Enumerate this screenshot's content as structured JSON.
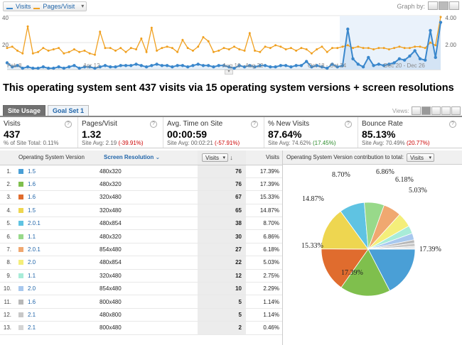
{
  "graph": {
    "metric1": "Visits",
    "metric2": "Pages/Visit",
    "metric1_color": "#3a87cc",
    "metric2_color": "#f0a020",
    "graph_by_label": "Graph by:",
    "left_axis": [
      "40",
      "20"
    ],
    "right_axis": [
      "4.00",
      "2.00"
    ],
    "date_labels": [
      "Feb 8",
      "Apr 12",
      "Aug 16 - Aug 22",
      "Oct 18 - Oct 24",
      "Dec 20 - Dec 26"
    ]
  },
  "title": "This operating system sent 437 visits via 15 operating system versions + screen resolutions",
  "tabs": {
    "site_usage": "Site Usage",
    "goal_set": "Goal Set 1",
    "views_label": "Views:"
  },
  "scorecard": [
    {
      "name": "Visits",
      "value": "437",
      "sub_prefix": "% of Site Total: ",
      "sub_value": "0.11%",
      "sub_suffix": "",
      "sub_class": ""
    },
    {
      "name": "Pages/Visit",
      "value": "1.32",
      "sub_prefix": "Site Avg: 2.19 ",
      "sub_value": "(-39.91%)",
      "sub_suffix": "",
      "sub_class": "neg"
    },
    {
      "name": "Avg. Time on Site",
      "value": "00:00:59",
      "sub_prefix": "Site Avg: 00:02:21 ",
      "sub_value": "(-57.91%)",
      "sub_suffix": "",
      "sub_class": "neg"
    },
    {
      "name": "% New Visits",
      "value": "87.64%",
      "sub_prefix": "Site Avg: 74.62% ",
      "sub_value": "(17.45%)",
      "sub_suffix": "",
      "sub_class": "pos"
    },
    {
      "name": "Bounce Rate",
      "value": "85.13%",
      "sub_prefix": "Site Avg: 70.49% ",
      "sub_value": "(20.77%)",
      "sub_suffix": "",
      "sub_class": "neg"
    }
  ],
  "table": {
    "headers": {
      "os_version": "Operating System Version",
      "resolution": "Screen Resolution",
      "visits_dd": "Visits",
      "visits": "Visits"
    },
    "rows": [
      {
        "num": "1.",
        "os": "1.5",
        "res": "480x320",
        "visits": "76",
        "pct": "17.39%",
        "color": "#4a9fd6"
      },
      {
        "num": "2.",
        "os": "1.6",
        "res": "480x320",
        "visits": "76",
        "pct": "17.39%",
        "color": "#7fbf4d"
      },
      {
        "num": "3.",
        "os": "1.6",
        "res": "320x480",
        "visits": "67",
        "pct": "15.33%",
        "color": "#e06c2e"
      },
      {
        "num": "4.",
        "os": "1.5",
        "res": "320x480",
        "visits": "65",
        "pct": "14.87%",
        "color": "#eed650"
      },
      {
        "num": "5.",
        "os": "2.0.1",
        "res": "480x854",
        "visits": "38",
        "pct": "8.70%",
        "color": "#5fc3e2"
      },
      {
        "num": "6.",
        "os": "1.1",
        "res": "480x320",
        "visits": "30",
        "pct": "6.86%",
        "color": "#98d98a"
      },
      {
        "num": "7.",
        "os": "2.0.1",
        "res": "854x480",
        "visits": "27",
        "pct": "6.18%",
        "color": "#f0a870"
      },
      {
        "num": "8.",
        "os": "2.0",
        "res": "480x854",
        "visits": "22",
        "pct": "5.03%",
        "color": "#f4ee7a"
      },
      {
        "num": "9.",
        "os": "1.1",
        "res": "320x480",
        "visits": "12",
        "pct": "2.75%",
        "color": "#a8ecd8"
      },
      {
        "num": "10.",
        "os": "2.0",
        "res": "854x480",
        "visits": "10",
        "pct": "2.29%",
        "color": "#a8c8ee"
      },
      {
        "num": "11.",
        "os": "1.6",
        "res": "800x480",
        "visits": "5",
        "pct": "1.14%",
        "color": "#b8b8b8"
      },
      {
        "num": "12.",
        "os": "2.1",
        "res": "480x800",
        "visits": "5",
        "pct": "1.14%",
        "color": "#c8c8c8"
      },
      {
        "num": "13.",
        "os": "2.1",
        "res": "800x480",
        "visits": "2",
        "pct": "0.46%",
        "color": "#d4d4d4"
      }
    ]
  },
  "pie": {
    "header_label": "Operating System Version contribution to total:",
    "dropdown_value": "Visits",
    "shown_labels": [
      "17.39%",
      "17.39%",
      "15.33%",
      "14.87%",
      "8.70%",
      "6.86%",
      "6.18%",
      "5.03%"
    ]
  },
  "chart_data": [
    {
      "type": "line",
      "series": [
        {
          "name": "Visits",
          "axis": "left",
          "values": [
            5,
            2,
            3,
            1,
            2,
            1,
            1,
            2,
            1,
            1,
            2,
            1,
            2,
            3,
            1,
            2,
            2,
            1,
            2,
            3,
            2,
            2,
            3,
            3,
            3,
            4,
            3,
            2,
            3,
            4,
            3,
            3,
            2,
            3,
            3,
            2,
            3,
            4,
            3,
            3,
            2,
            3,
            3,
            2,
            1,
            3,
            2,
            3,
            2,
            3,
            3,
            2,
            2,
            3,
            3,
            2,
            3,
            3,
            6,
            2,
            3,
            2,
            1,
            4,
            2,
            3,
            30,
            8,
            4,
            2,
            9,
            3,
            4,
            3,
            4,
            5,
            8,
            7,
            10,
            14,
            8,
            7,
            29,
            9,
            35
          ]
        },
        {
          "name": "Pages/Visit",
          "axis": "right",
          "values": [
            1.6,
            1.7,
            1.4,
            1.2,
            3.2,
            1.2,
            1.3,
            1.6,
            1.4,
            1.5,
            1.6,
            1.2,
            1.3,
            1.5,
            1.3,
            1.4,
            1.2,
            1.1,
            2.8,
            1.6,
            1.6,
            1.4,
            1.6,
            1.3,
            1.6,
            1.5,
            2.3,
            1.3,
            3.1,
            1.4,
            1.6,
            1.7,
            1.6,
            1.3,
            2.2,
            1.6,
            1.4,
            1.7,
            2.4,
            2.1,
            1.3,
            1.4,
            1.6,
            1.5,
            1.7,
            1.5,
            1.4,
            2.7,
            1.4,
            1.3,
            1.7,
            1.6,
            1.8,
            1.7,
            1.5,
            1.6,
            1.4,
            1.6,
            1.5,
            1.2,
            1.5,
            1.7,
            1.3,
            1.6,
            1.6,
            1.7,
            1.8,
            1.6,
            1.7,
            1.6,
            1.6,
            1.5,
            1.6,
            1.6,
            1.5,
            1.6,
            1.7,
            1.6,
            1.6,
            1.7,
            1.7,
            1.6,
            2.0,
            1.8,
            3.9
          ]
        }
      ],
      "ylim_left": [
        0,
        40
      ],
      "ylim_right": [
        0,
        4
      ]
    },
    {
      "type": "pie",
      "categories": [
        "1.5 / 480x320",
        "1.6 / 480x320",
        "1.6 / 320x480",
        "1.5 / 320x480",
        "2.0.1 / 480x854",
        "1.1 / 480x320",
        "2.0.1 / 854x480",
        "2.0 / 480x854",
        "1.1 / 320x480",
        "2.0 / 854x480",
        "1.6 / 800x480",
        "2.1 / 480x800",
        "2.1 / 800x480",
        "other"
      ],
      "values": [
        17.39,
        17.39,
        15.33,
        14.87,
        8.7,
        6.86,
        6.18,
        5.03,
        2.75,
        2.29,
        1.14,
        1.14,
        0.46,
        0.47
      ],
      "colors": [
        "#4a9fd6",
        "#7fbf4d",
        "#e06c2e",
        "#eed650",
        "#5fc3e2",
        "#98d98a",
        "#f0a870",
        "#f4ee7a",
        "#a8ecd8",
        "#a8c8ee",
        "#b8b8b8",
        "#c8c8c8",
        "#d4d4d4",
        "#e2e2e2"
      ]
    }
  ]
}
